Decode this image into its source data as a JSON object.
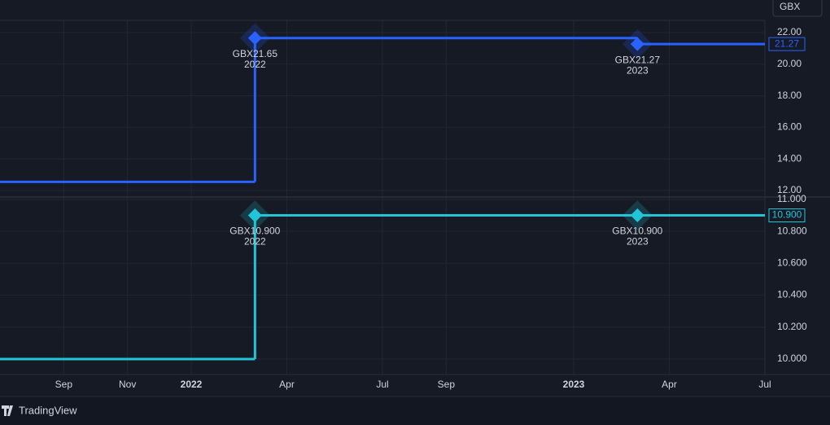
{
  "currency_button": "GBX",
  "brand": "TradingView",
  "chart_data": [
    {
      "type": "line",
      "step": true,
      "grid": true,
      "xlim": [
        "2021-07",
        "2023-07"
      ],
      "ylim": [
        11.59,
        22.77
      ],
      "yticks": [
        {
          "value": 12,
          "label": "12.00"
        },
        {
          "value": 14,
          "label": "14.00"
        },
        {
          "value": 16,
          "label": "16.00"
        },
        {
          "value": 18,
          "label": "18.00"
        },
        {
          "value": 20,
          "label": "20.00"
        },
        {
          "value": 22,
          "label": "22.00"
        }
      ],
      "series": [
        {
          "color": "#2962ff",
          "x": [
            "2021-07",
            "2022-03",
            "2023-03"
          ],
          "values": [
            12.55,
            21.65,
            21.27
          ],
          "value_labels": [
            null,
            "GBX21.65",
            "GBX21.27"
          ],
          "period_labels": [
            null,
            "2022",
            "2023"
          ],
          "last_value_label": "21.27"
        }
      ]
    },
    {
      "type": "line",
      "step": true,
      "grid": true,
      "xlim": [
        "2021-07",
        "2023-07"
      ],
      "ylim": [
        9.903,
        11.015
      ],
      "yticks": [
        {
          "value": 10,
          "label": "10.000"
        },
        {
          "value": 10.2,
          "label": "10.200"
        },
        {
          "value": 10.4,
          "label": "10.400"
        },
        {
          "value": 10.6,
          "label": "10.600"
        },
        {
          "value": 10.8,
          "label": "10.800"
        },
        {
          "value": 11,
          "label": "11.000"
        }
      ],
      "xticks": [
        {
          "value": "2021-09",
          "label": "Sep"
        },
        {
          "value": "2021-11",
          "label": "Nov"
        },
        {
          "value": "2022-01",
          "label": "2022"
        },
        {
          "value": "2022-04",
          "label": "Apr"
        },
        {
          "value": "2022-07",
          "label": "Jul"
        },
        {
          "value": "2022-09",
          "label": "Sep"
        },
        {
          "value": "2023-01",
          "label": "2023"
        },
        {
          "value": "2023-04",
          "label": "Apr"
        },
        {
          "value": "2023-07",
          "label": "Jul"
        }
      ],
      "series": [
        {
          "color": "#22c5d8",
          "x": [
            "2021-07",
            "2022-03",
            "2023-03"
          ],
          "values": [
            10.0,
            10.9,
            10.9
          ],
          "value_labels": [
            null,
            "GBX10.900",
            "GBX10.900"
          ],
          "period_labels": [
            null,
            "2022",
            "2023"
          ],
          "last_value_label": "10.900"
        }
      ]
    }
  ]
}
